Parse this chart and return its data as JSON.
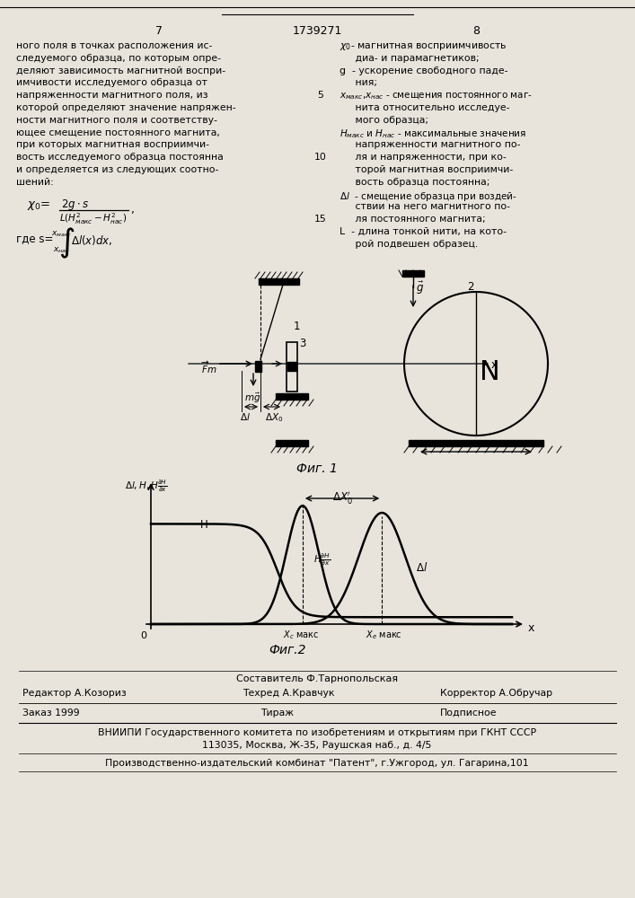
{
  "page_number_left": "7",
  "page_number_center": "1739271",
  "page_number_right": "8",
  "left_text_lines": [
    "ного поля в точках расположения ис-",
    "следуемого образца, по которым опре-",
    "деляют зависимость магнитной воспри-",
    "имчивости исследуемого образца от",
    "напряженности магнитного поля, из",
    "которой определяют значение напряжен-",
    "ности магнитного поля и соответству-",
    "ющее смещение постоянного магнита,",
    "при которых магнитная восприимчи-",
    "вость исследуемого образца постоянна",
    "и определяется из следующих соотно-",
    "шений:"
  ],
  "fig1_caption": "Фиг. 1",
  "fig2_caption": "Фиг.2",
  "bottom_composer": "Составитель Ф.Тарнопольская",
  "bottom_editor": "Редактор А.Козориз",
  "bottom_tech": "Техред А.Кравчук",
  "bottom_corrector": "Корректор А.Обручар",
  "bottom_order": "Заказ 1999",
  "bottom_tirazh": "Тираж",
  "bottom_podpisnoe": "Подписное",
  "bottom_vniipи": "ВНИИПИ Государственного комитета по изобретениям и открытиям при ГКНТ СССР",
  "bottom_address": "113035, Москва, Ж-35, Раушская наб., д. 4/5",
  "bottom_proizv": "Производственно-издательский комбинат \"Патент\", г.Ужгород, ул. Гагарина,101",
  "bg_color": "#e8e4dc"
}
